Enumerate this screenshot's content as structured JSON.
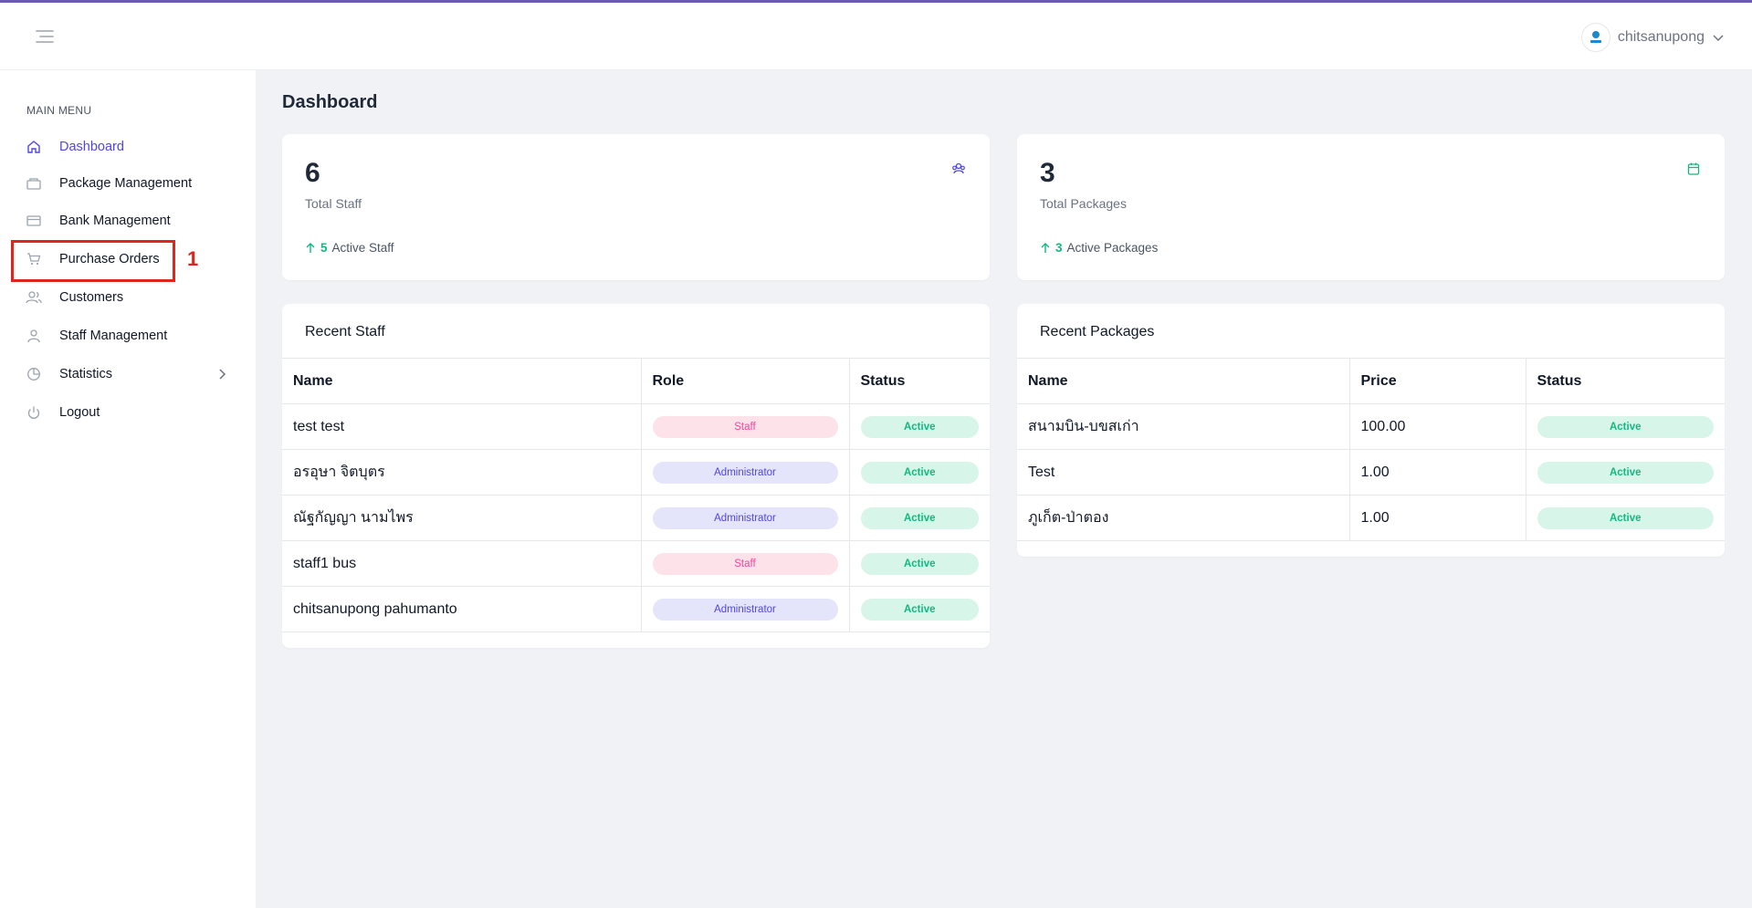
{
  "header": {
    "username": "chitsanupong"
  },
  "sidebar": {
    "menu_title": "MAIN MENU",
    "items": [
      {
        "label": "Dashboard",
        "icon": "home-icon",
        "active": true
      },
      {
        "label": "Package Management",
        "icon": "package-icon"
      },
      {
        "label": "Bank Management",
        "icon": "credit-card-icon"
      },
      {
        "label": "Purchase Orders",
        "icon": "cart-icon"
      },
      {
        "label": "Customers",
        "icon": "users-icon"
      },
      {
        "label": "Staff Management",
        "icon": "user-icon"
      },
      {
        "label": "Statistics",
        "icon": "pie-chart-icon",
        "has_submenu": true
      },
      {
        "label": "Logout",
        "icon": "power-icon"
      }
    ],
    "annotation": "1"
  },
  "main": {
    "title": "Dashboard",
    "stats": [
      {
        "value": "6",
        "label": "Total Staff",
        "trend_value": "5",
        "trend_label": "Active Staff",
        "icon": "team-icon"
      },
      {
        "value": "3",
        "label": "Total Packages",
        "trend_value": "3",
        "trend_label": "Active Packages",
        "icon": "package-box-icon"
      }
    ],
    "recent_staff": {
      "title": "Recent Staff",
      "columns": [
        "Name",
        "Role",
        "Status"
      ],
      "rows": [
        {
          "name": "test test",
          "role": "Staff",
          "status": "Active"
        },
        {
          "name": "อรอุษา จิตบุตร",
          "role": "Administrator",
          "status": "Active"
        },
        {
          "name": "ณัฐกัญญา นามไพร",
          "role": "Administrator",
          "status": "Active"
        },
        {
          "name": "staff1 bus",
          "role": "Staff",
          "status": "Active"
        },
        {
          "name": "chitsanupong pahumanto",
          "role": "Administrator",
          "status": "Active"
        }
      ]
    },
    "recent_packages": {
      "title": "Recent Packages",
      "columns": [
        "Name",
        "Price",
        "Status"
      ],
      "rows": [
        {
          "name": "สนามบิน-บขสเก่า",
          "price": "100.00",
          "status": "Active"
        },
        {
          "name": "Test",
          "price": "1.00",
          "status": "Active"
        },
        {
          "name": "ภูเก็ต-ป่าตอง",
          "price": "1.00",
          "status": "Active"
        }
      ]
    }
  },
  "colors": {
    "accent": "#4f46e5",
    "success": "#10b981",
    "staff_pink": "#ec4899",
    "annotation_red": "#e0261b"
  }
}
